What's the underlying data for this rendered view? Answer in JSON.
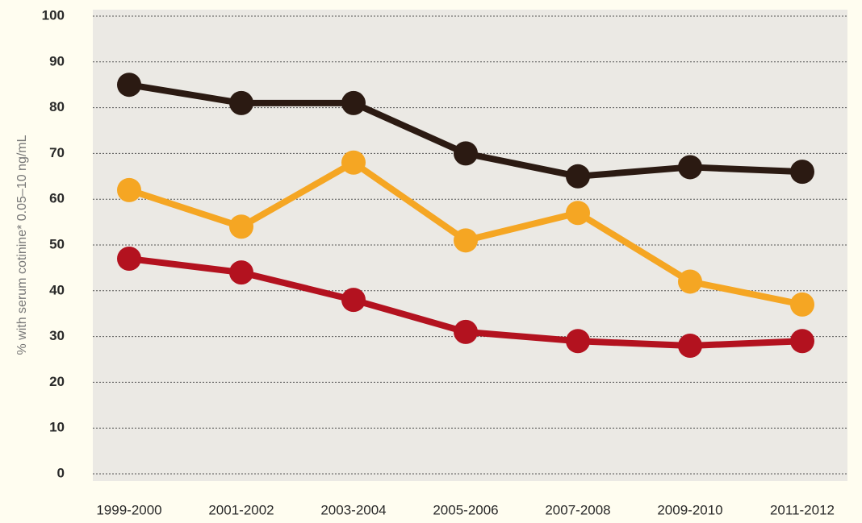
{
  "chart_data": {
    "type": "line",
    "y_label": "% with serum cotinine* 0.05–10 ng/mL",
    "categories": [
      "1999-2000",
      "2001-2002",
      "2003-2004",
      "2005-2006",
      "2007-2008",
      "2009-2010",
      "2011-2012"
    ],
    "series": [
      {
        "color": "#2b1a12",
        "values": [
          85,
          81,
          81,
          70,
          65,
          67,
          66
        ]
      },
      {
        "color": "#f5a623",
        "values": [
          62,
          54,
          68,
          51,
          57,
          42,
          37
        ]
      },
      {
        "color": "#b3121f",
        "values": [
          47,
          44,
          38,
          31,
          29,
          28,
          29
        ]
      }
    ],
    "ylim": [
      0,
      100
    ],
    "yticks": [
      0,
      10,
      20,
      30,
      40,
      50,
      60,
      70,
      80,
      90,
      100
    ],
    "grid": true
  }
}
